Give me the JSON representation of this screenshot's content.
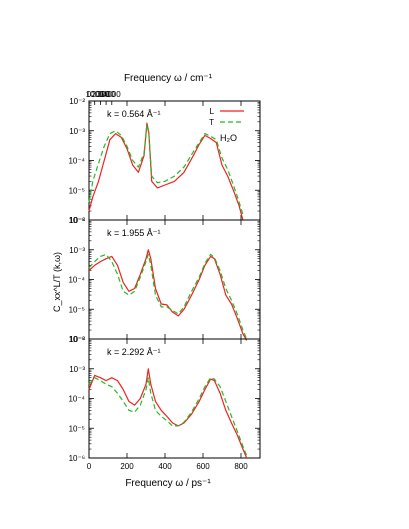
{
  "chart_data": {
    "type": "line",
    "figure": {
      "top_axis_label": "Frequency ω / cm⁻¹",
      "top_ticks": [
        "0",
        "1000",
        "2000",
        "3000",
        "4000"
      ],
      "top_tick_values": [
        0,
        1000,
        2000,
        3000,
        4000
      ],
      "bottom_axis_label": "Frequency ω / ps⁻¹",
      "bottom_ticks": [
        "0",
        "200",
        "400",
        "600",
        "800"
      ],
      "bottom_tick_values": [
        0,
        200,
        400,
        600,
        800
      ],
      "ylabel": "C_xx^L/T (k,ω)",
      "xlim": [
        0,
        900
      ],
      "y_scale": "log",
      "ylim": [
        1e-06,
        0.01
      ],
      "y_tick_labels": [
        "10⁻⁶",
        "10⁻⁵",
        "10⁻⁴",
        "10⁻³",
        "10⁻²"
      ],
      "legend": {
        "entries": [
          {
            "label": "L",
            "color": "#ee2222",
            "dash": "solid"
          },
          {
            "label": "T",
            "color": "#22bb22",
            "dash": "dashed"
          }
        ],
        "annotation": "H₂O",
        "placement": "top-right"
      }
    },
    "panels": [
      {
        "label": "k = 0.564 Å⁻¹",
        "x": [
          0,
          20,
          50,
          80,
          110,
          140,
          170,
          200,
          230,
          260,
          290,
          305,
          315,
          330,
          360,
          400,
          450,
          500,
          550,
          580,
          610,
          640,
          670,
          700,
          730,
          760,
          790,
          810
        ],
        "series": [
          {
            "name": "L",
            "values": [
              2e-06,
              6e-06,
              2e-05,
              0.0001,
              0.0005,
              0.0008,
              0.0006,
              0.00025,
              7e-05,
              4e-05,
              0.00015,
              0.0018,
              0.0009,
              2e-05,
              1.2e-05,
              1.5e-05,
              2e-05,
              4e-05,
              0.00015,
              0.00035,
              0.0007,
              0.00055,
              0.0004,
              7e-05,
              3e-05,
              1e-05,
              3e-06,
              1e-06
            ]
          },
          {
            "name": "T",
            "values": [
              4e-06,
              2e-05,
              8e-05,
              0.0003,
              0.0008,
              0.001,
              0.0007,
              0.0003,
              0.0001,
              6e-05,
              0.00018,
              0.0016,
              0.0008,
              3e-05,
              1.8e-05,
              2e-05,
              3e-05,
              6e-05,
              0.0002,
              0.0004,
              0.0008,
              0.00065,
              0.0005,
              0.00012,
              5e-05,
              1.5e-05,
              4e-06,
              1.5e-06
            ]
          }
        ]
      },
      {
        "label": "k = 1.955 Å⁻¹",
        "x": [
          0,
          30,
          60,
          90,
          120,
          150,
          180,
          210,
          240,
          270,
          300,
          312,
          325,
          350,
          380,
          410,
          440,
          470,
          500,
          540,
          580,
          610,
          640,
          660,
          690,
          720,
          750,
          780,
          810,
          830
        ],
        "series": [
          {
            "name": "L",
            "values": [
              0.0002,
              0.0003,
              0.0004,
              0.0005,
              0.0006,
              0.0003,
              8e-05,
              4e-05,
              5e-05,
              0.00015,
              0.0005,
              0.001,
              0.0005,
              5e-05,
              1.5e-05,
              1.4e-05,
              8e-06,
              6e-06,
              1e-05,
              3e-05,
              0.0001,
              0.0003,
              0.0006,
              0.0005,
              0.00015,
              3e-05,
              1.5e-05,
              5e-06,
              1.5e-06,
              8e-07
            ]
          },
          {
            "name": "T",
            "values": [
              0.00025,
              0.0004,
              0.0006,
              0.0007,
              0.0004,
              0.00015,
              4e-05,
              3e-05,
              4e-05,
              0.00012,
              0.0004,
              0.0007,
              0.0003,
              3e-05,
              1.2e-05,
              1.2e-05,
              9e-06,
              7e-06,
              1.2e-05,
              4e-05,
              0.00012,
              0.00035,
              0.0007,
              0.00055,
              0.0002,
              5e-05,
              2e-05,
              7e-06,
              2e-06,
              1e-06
            ]
          }
        ]
      },
      {
        "label": "k = 2.292 Å⁻¹",
        "x": [
          0,
          30,
          60,
          90,
          120,
          150,
          180,
          210,
          240,
          270,
          300,
          312,
          325,
          350,
          380,
          410,
          440,
          470,
          500,
          540,
          580,
          610,
          640,
          660,
          690,
          720,
          750,
          780,
          810,
          830
        ],
        "series": [
          {
            "name": "L",
            "values": [
              0.0002,
              0.0006,
              0.0005,
              0.0004,
              0.0005,
              0.0004,
              0.0002,
              8e-05,
              6e-05,
              0.0001,
              0.0003,
              0.001,
              0.0003,
              8e-05,
              4e-05,
              2.5e-05,
              1.5e-05,
              1.2e-05,
              1.5e-05,
              3e-05,
              8e-05,
              0.0002,
              0.00045,
              0.0004,
              0.00015,
              4e-05,
              1.5e-05,
              6e-06,
              2e-06,
              1e-06
            ]
          },
          {
            "name": "T",
            "values": [
              0.0003,
              0.0005,
              0.0004,
              0.0003,
              0.00025,
              0.00015,
              8e-05,
              4e-05,
              3.5e-05,
              6e-05,
              0.0002,
              0.0005,
              0.00015,
              4e-05,
              2.5e-05,
              1.8e-05,
              1.2e-05,
              1.2e-05,
              1.6e-05,
              3.5e-05,
              0.0001,
              0.00025,
              0.0005,
              0.00045,
              0.00025,
              8e-05,
              2.5e-05,
              8e-06,
              2.5e-06,
              1.2e-06
            ]
          }
        ]
      }
    ]
  }
}
